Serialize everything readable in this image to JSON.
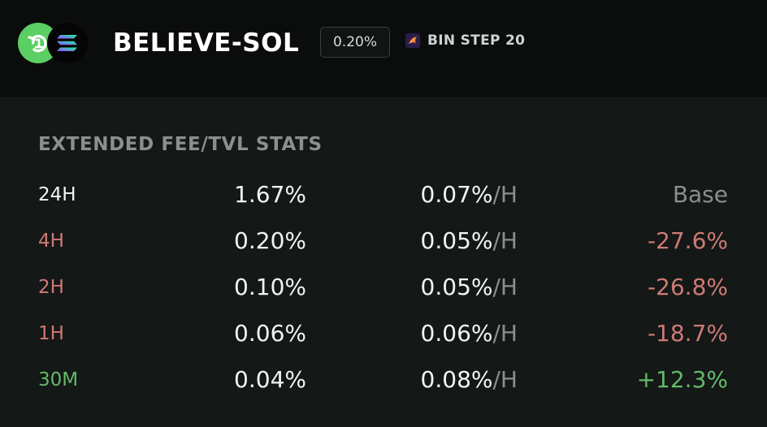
{
  "header": {
    "pair_name": "BELIEVE-SOL",
    "fee_tier": "0.20%",
    "bin_step_label": "BIN STEP 20",
    "token_icons": [
      "believe-token-icon",
      "solana-token-icon"
    ],
    "colors": {
      "believe": "#5bcf63",
      "solana_bg": "#050505"
    }
  },
  "stats": {
    "heading": "EXTENDED FEE/TVL STATS",
    "hourly_unit": "/H",
    "rows": [
      {
        "period": "24H",
        "fee_tvl": "1.67%",
        "hourly": "0.07%",
        "change": "Base",
        "tone": "base"
      },
      {
        "period": "4H",
        "fee_tvl": "0.20%",
        "hourly": "0.05%",
        "change": "-27.6%",
        "tone": "negative"
      },
      {
        "period": "2H",
        "fee_tvl": "0.10%",
        "hourly": "0.05%",
        "change": "-26.8%",
        "tone": "negative"
      },
      {
        "period": "1H",
        "fee_tvl": "0.06%",
        "hourly": "0.06%",
        "change": "-18.7%",
        "tone": "negative"
      },
      {
        "period": "30M",
        "fee_tvl": "0.04%",
        "hourly": "0.08%",
        "change": "+12.3%",
        "tone": "positive"
      }
    ],
    "colors": {
      "base_period": "#f2f4f3",
      "base_change": "#8a8f8d",
      "negative": "#cd7a76",
      "positive": "#64b96a"
    }
  }
}
